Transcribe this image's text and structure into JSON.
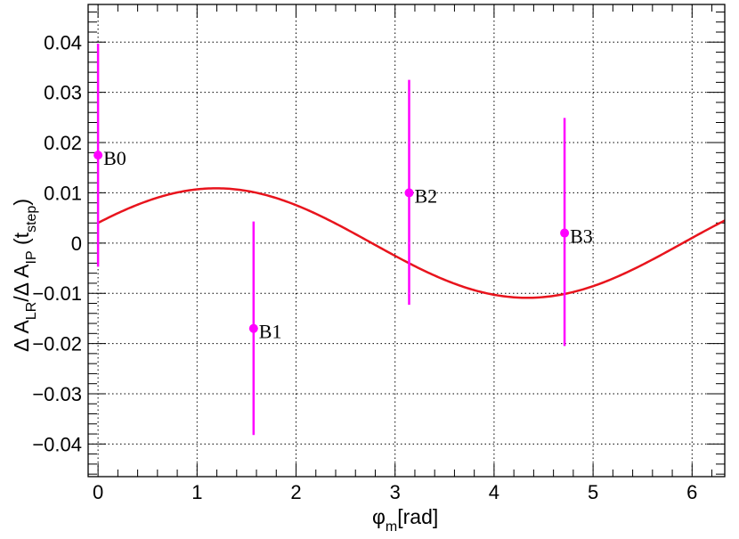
{
  "chart_data": {
    "type": "scatter",
    "title": "",
    "xlabel": {
      "main": "φ",
      "sub": "m",
      "rest": "[rad]"
    },
    "ylabel": {
      "parts": [
        {
          "t": "Δ A",
          "k": "n"
        },
        {
          "t": "LR",
          "k": "sub"
        },
        {
          "t": "/Δ A",
          "k": "n"
        },
        {
          "t": "IP",
          "k": "sub"
        },
        {
          "t": " (t",
          "k": "n"
        },
        {
          "t": "step",
          "k": "sub"
        },
        {
          "t": ")",
          "k": "n"
        }
      ]
    },
    "xlim": [
      -0.1,
      6.33
    ],
    "ylim": [
      -0.0465,
      0.0475
    ],
    "xticks": [
      0,
      1,
      2,
      3,
      4,
      5,
      6
    ],
    "xtick_labels": [
      "0",
      "1",
      "2",
      "3",
      "4",
      "5",
      "6"
    ],
    "yticks": [
      -0.04,
      -0.03,
      -0.02,
      -0.01,
      0,
      0.01,
      0.02,
      0.03,
      0.04
    ],
    "ytick_labels": [
      "−0.04",
      "−0.03",
      "−0.02",
      "−0.01",
      "0",
      "0.01",
      "0.02",
      "0.03",
      "0.04"
    ],
    "grid": true,
    "points": [
      {
        "label": "B0",
        "x": 0.0,
        "y": 0.0175,
        "err_low": 0.0222,
        "err_high": 0.0222
      },
      {
        "label": "B1",
        "x": 1.571,
        "y": -0.017,
        "err_low": 0.0212,
        "err_high": 0.0213
      },
      {
        "label": "B2",
        "x": 3.142,
        "y": 0.01,
        "err_low": 0.0223,
        "err_high": 0.0225
      },
      {
        "label": "B3",
        "x": 4.712,
        "y": 0.002,
        "err_low": 0.0225,
        "err_high": 0.0229
      }
    ],
    "fit": {
      "function": "A*sin(x+phi)",
      "amplitude": 0.0109,
      "phase": 0.3772,
      "x_range": [
        0,
        6.33
      ]
    },
    "colors": {
      "points": "#ff00ff",
      "fit": "#e8141d",
      "grid": "#000000",
      "frame": "#000000"
    }
  }
}
